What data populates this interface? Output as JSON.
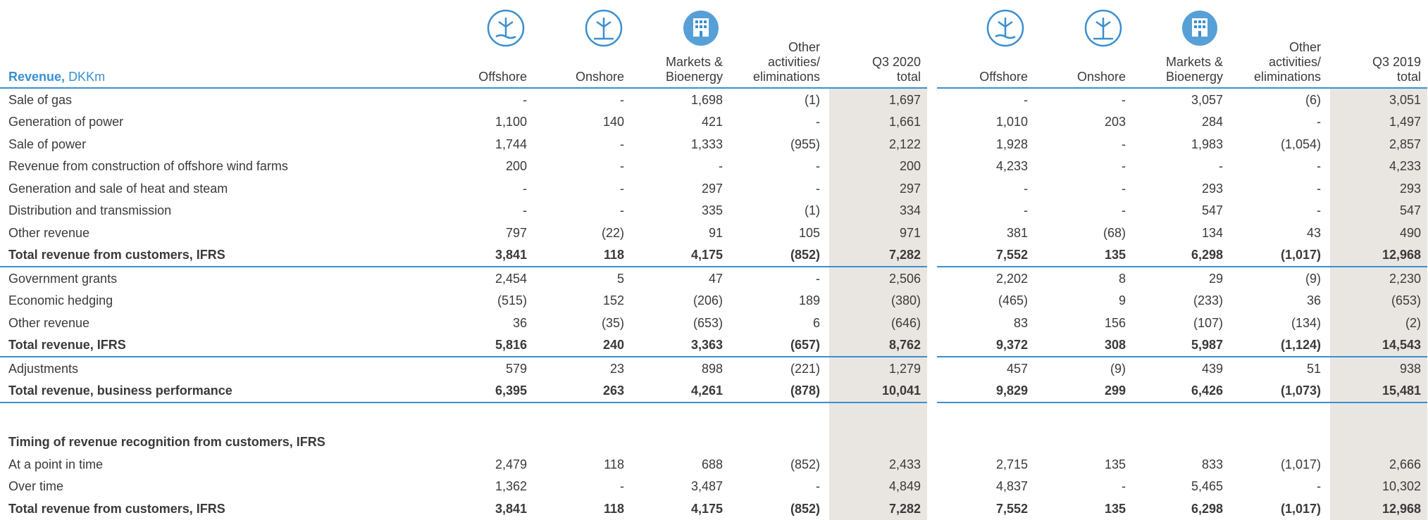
{
  "header": {
    "label_bold": "Revenue,",
    "label_unit": "DKKm",
    "columns": [
      [
        "Offshore"
      ],
      [
        "Onshore"
      ],
      [
        "Markets &",
        "Bioenergy"
      ],
      [
        "Other",
        "activities/",
        "eliminations"
      ],
      [
        "Q3 2020",
        "total"
      ],
      [
        "Offshore"
      ],
      [
        "Onshore"
      ],
      [
        "Markets &",
        "Bioenergy"
      ],
      [
        "Other",
        "activities/",
        "eliminations"
      ],
      [
        "Q3 2019",
        "total"
      ]
    ]
  },
  "rows": [
    {
      "label": "Sale of gas",
      "cells": [
        "-",
        "-",
        "1,698",
        "(1)",
        "1,697",
        "-",
        "-",
        "3,057",
        "(6)",
        "3,051"
      ]
    },
    {
      "label": "Generation of power",
      "cells": [
        "1,100",
        "140",
        "421",
        "-",
        "1,661",
        "1,010",
        "203",
        "284",
        "-",
        "1,497"
      ]
    },
    {
      "label": "Sale of power",
      "cells": [
        "1,744",
        "-",
        "1,333",
        "(955)",
        "2,122",
        "1,928",
        "-",
        "1,983",
        "(1,054)",
        "2,857"
      ]
    },
    {
      "label": "Revenue from construction of offshore wind farms",
      "cells": [
        "200",
        "-",
        "-",
        "-",
        "200",
        "4,233",
        "-",
        "-",
        "-",
        "4,233"
      ]
    },
    {
      "label": "Generation and sale of heat and steam",
      "cells": [
        "-",
        "-",
        "297",
        "-",
        "297",
        "-",
        "-",
        "293",
        "-",
        "293"
      ]
    },
    {
      "label": "Distribution and transmission",
      "cells": [
        "-",
        "-",
        "335",
        "(1)",
        "334",
        "-",
        "-",
        "547",
        "-",
        "547"
      ]
    },
    {
      "label": "Other revenue",
      "cells": [
        "797",
        "(22)",
        "91",
        "105",
        "971",
        "381",
        "(68)",
        "134",
        "43",
        "490"
      ]
    },
    {
      "label": "Total revenue from customers, IFRS",
      "bold": true,
      "rule": true,
      "cells": [
        "3,841",
        "118",
        "4,175",
        "(852)",
        "7,282",
        "7,552",
        "135",
        "6,298",
        "(1,017)",
        "12,968"
      ]
    },
    {
      "label": "Government grants",
      "cells": [
        "2,454",
        "5",
        "47",
        "-",
        "2,506",
        "2,202",
        "8",
        "29",
        "(9)",
        "2,230"
      ]
    },
    {
      "label": "Economic hedging",
      "cells": [
        "(515)",
        "152",
        "(206)",
        "189",
        "(380)",
        "(465)",
        "9",
        "(233)",
        "36",
        "(653)"
      ]
    },
    {
      "label": "Other revenue",
      "cells": [
        "36",
        "(35)",
        "(653)",
        "6",
        "(646)",
        "83",
        "156",
        "(107)",
        "(134)",
        "(2)"
      ]
    },
    {
      "label": "Total revenue, IFRS",
      "bold": true,
      "rule": true,
      "cells": [
        "5,816",
        "240",
        "3,363",
        "(657)",
        "8,762",
        "9,372",
        "308",
        "5,987",
        "(1,124)",
        "14,543"
      ]
    },
    {
      "label": "Adjustments",
      "cells": [
        "579",
        "23",
        "898",
        "(221)",
        "1,279",
        "457",
        "(9)",
        "439",
        "51",
        "938"
      ]
    },
    {
      "label": "Total revenue, business performance",
      "bold": true,
      "rule": true,
      "cells": [
        "6,395",
        "263",
        "4,261",
        "(878)",
        "10,041",
        "9,829",
        "299",
        "6,426",
        "(1,073)",
        "15,481"
      ]
    },
    {
      "label": "Timing of revenue recognition from customers, IFRS",
      "bold": true,
      "heading": true
    },
    {
      "label": "At a point in time",
      "cells": [
        "2,479",
        "118",
        "688",
        "(852)",
        "2,433",
        "2,715",
        "135",
        "833",
        "(1,017)",
        "2,666"
      ]
    },
    {
      "label": "Over time",
      "cells": [
        "1,362",
        "-",
        "3,487",
        "-",
        "4,849",
        "4,837",
        "-",
        "5,465",
        "-",
        "10,302"
      ]
    },
    {
      "label": "Total revenue from customers, IFRS",
      "bold": true,
      "cells": [
        "3,841",
        "118",
        "4,175",
        "(852)",
        "7,282",
        "7,552",
        "135",
        "6,298",
        "(1,017)",
        "12,968"
      ]
    }
  ]
}
